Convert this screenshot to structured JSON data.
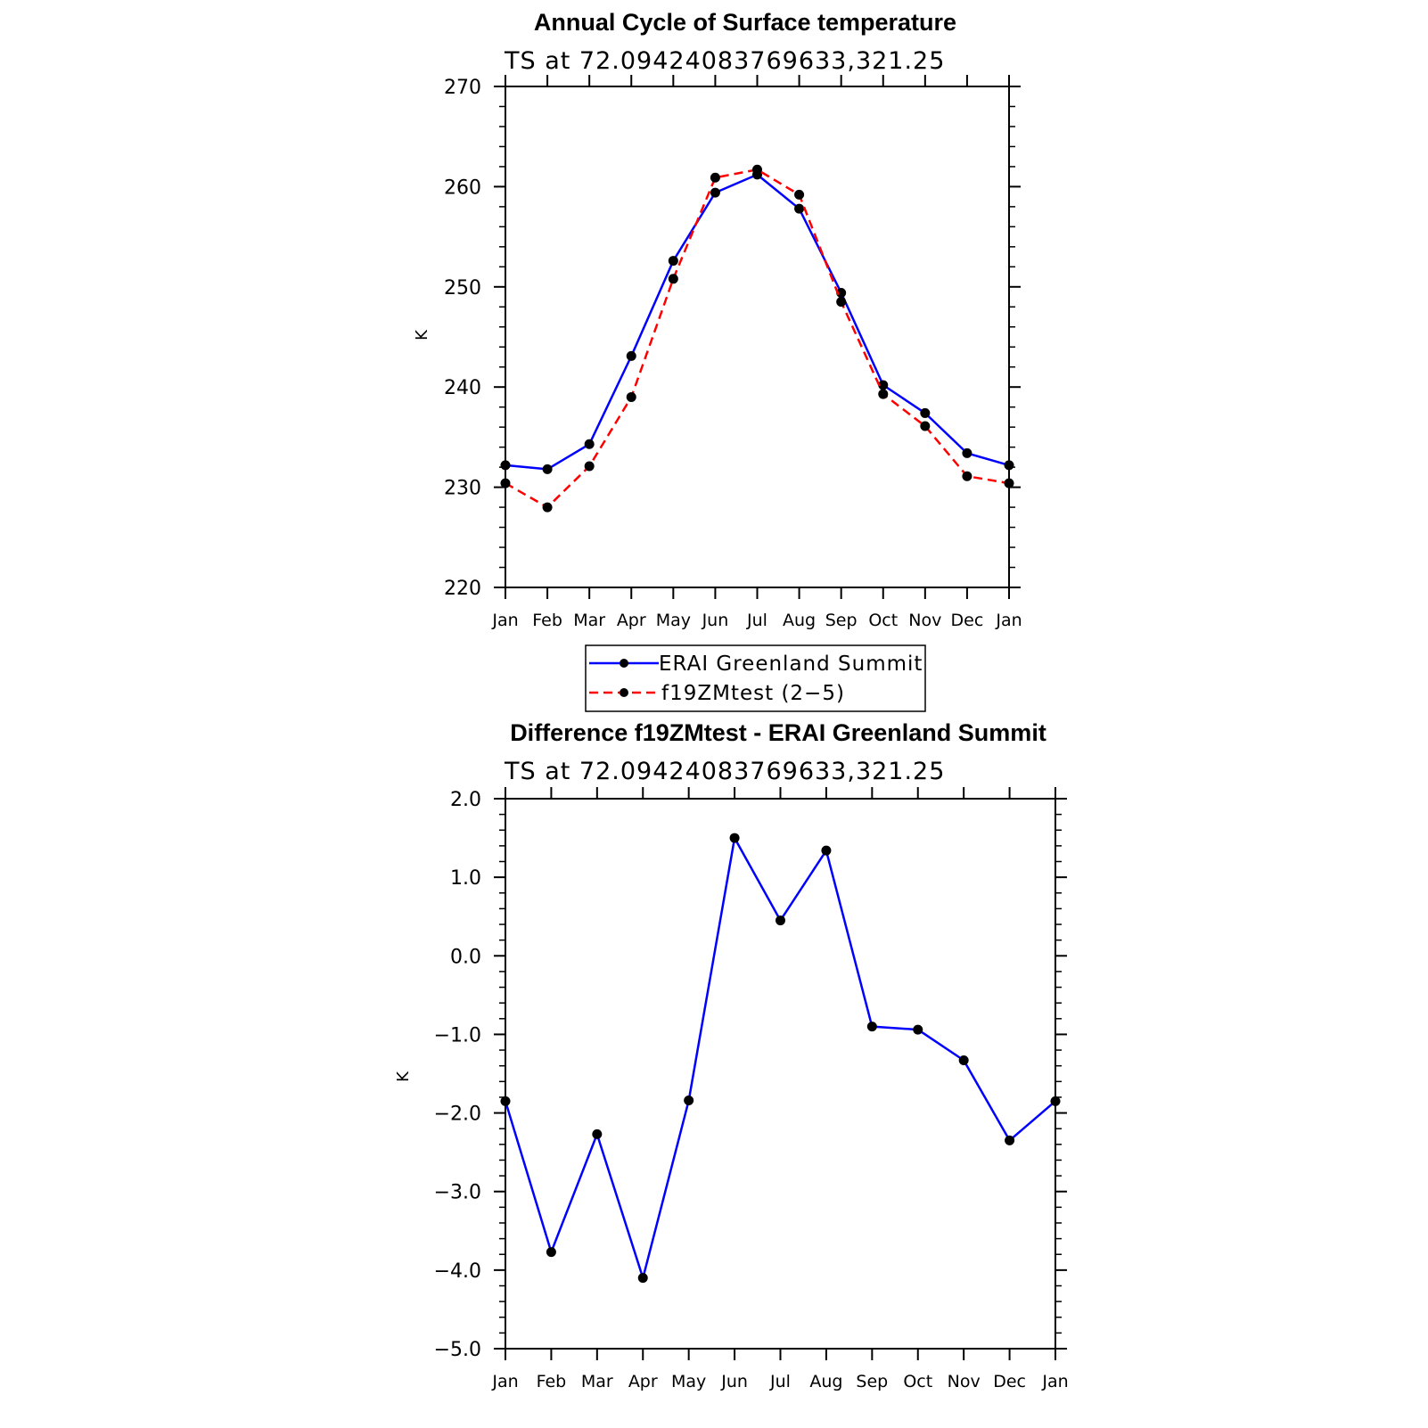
{
  "chart_data": [
    {
      "type": "line",
      "title": "Annual Cycle of Surface temperature",
      "subtitle": "TS at 72.09424083769633,321.25",
      "ylabel": "K",
      "xlabel": "",
      "ylim": [
        220,
        270
      ],
      "yticks": [
        "220",
        "230",
        "240",
        "250",
        "260",
        "270"
      ],
      "categories": [
        "Jan",
        "Feb",
        "Mar",
        "Apr",
        "May",
        "Jun",
        "Jul",
        "Aug",
        "Sep",
        "Oct",
        "Nov",
        "Dec",
        "Jan"
      ],
      "grid": false,
      "legend_position": "bottom",
      "series": [
        {
          "name": "ERAI Greenland Summit",
          "color": "#0000ff",
          "dash": "solid",
          "marker_color": "#000000",
          "values": [
            232.2,
            231.8,
            234.3,
            243.1,
            252.6,
            259.4,
            261.2,
            257.8,
            249.4,
            240.2,
            237.4,
            233.4,
            232.2
          ]
        },
        {
          "name": "f19ZMtest (2−5)",
          "color": "#ff0000",
          "dash": "dashed",
          "marker_color": "#000000",
          "values": [
            230.4,
            228.0,
            232.1,
            239.0,
            250.8,
            260.9,
            261.7,
            259.2,
            248.5,
            239.3,
            236.1,
            231.1,
            230.4
          ]
        }
      ]
    },
    {
      "type": "line",
      "title": "Difference f19ZMtest - ERAI Greenland Summit",
      "subtitle": "TS at 72.09424083769633,321.25",
      "ylabel": "K",
      "xlabel": "",
      "ylim": [
        -5,
        2
      ],
      "yticks": [
        "−5.0",
        "−4.0",
        "−3.0",
        "−2.0",
        "−1.0",
        "0.0",
        "1.0",
        "2.0"
      ],
      "categories": [
        "Jan",
        "Feb",
        "Mar",
        "Apr",
        "May",
        "Jun",
        "Jul",
        "Aug",
        "Sep",
        "Oct",
        "Nov",
        "Dec",
        "Jan"
      ],
      "grid": false,
      "series": [
        {
          "name": "",
          "color": "#0000ff",
          "dash": "solid",
          "marker_color": "#000000",
          "values": [
            -1.85,
            -3.77,
            -2.27,
            -4.1,
            -1.84,
            1.5,
            0.45,
            1.34,
            -0.9,
            -0.94,
            -1.33,
            -2.35,
            -1.85
          ]
        }
      ]
    }
  ]
}
